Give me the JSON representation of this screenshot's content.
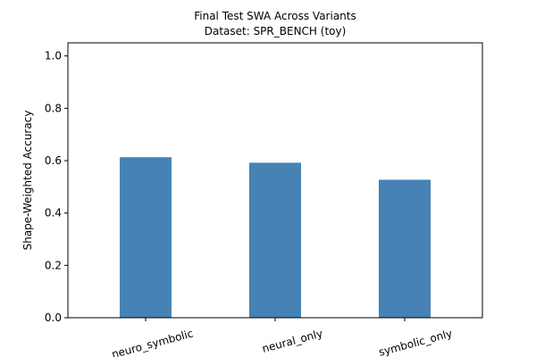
{
  "chart_data": {
    "type": "bar",
    "title": "Final Test SWA Across Variants",
    "subtitle": "Dataset: SPR_BENCH (toy)",
    "xlabel": "",
    "ylabel": "Shape-Weighted Accuracy",
    "categories": [
      "neuro_symbolic",
      "neural_only",
      "symbolic_only"
    ],
    "values": [
      0.613,
      0.592,
      0.527
    ],
    "ylim": [
      0,
      1.05
    ],
    "yticks": [
      "0.0",
      "0.2",
      "0.4",
      "0.6",
      "0.8",
      "1.0"
    ],
    "bar_color": "#4682b4",
    "grid": false,
    "legend": "none"
  }
}
